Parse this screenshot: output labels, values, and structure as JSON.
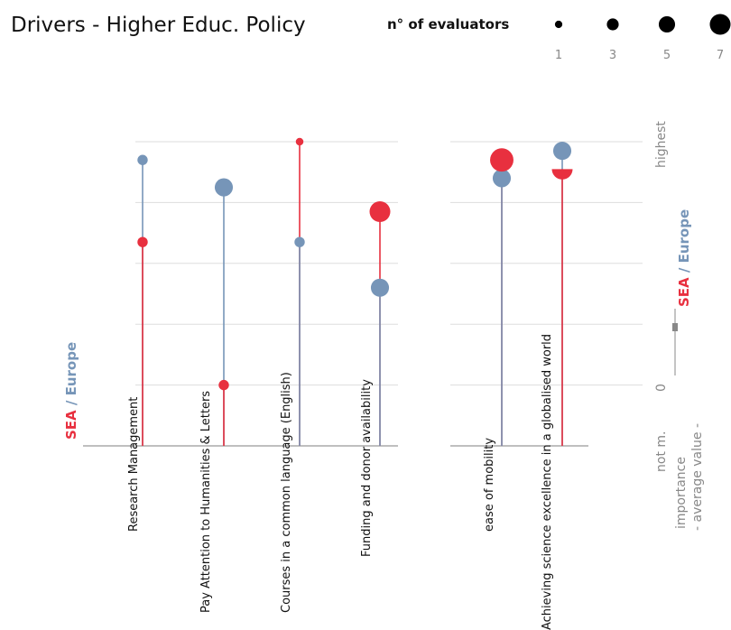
{
  "title": "Drivers - Higher Educ. Policy",
  "legend": {
    "title": "n° of evaluators",
    "sizes": [
      {
        "label": "1",
        "n": 1
      },
      {
        "label": "3",
        "n": 3
      },
      {
        "label": "5",
        "n": 5
      },
      {
        "label": "7",
        "n": 7
      }
    ]
  },
  "left_axis_label": {
    "sea": "SEA",
    "separator": " / ",
    "europe": "Europe"
  },
  "right_axis": {
    "top_tick": "highest",
    "zero_tick": "0",
    "bottom_tick": "not m.",
    "sea": "SEA",
    "separator": " / ",
    "europe": "Europe",
    "line1": "importance",
    "line2": "- average value -"
  },
  "colors": {
    "sea": "#e8303f",
    "europe": "#7695b8",
    "grid": "#dddddd",
    "baseline": "#999999"
  },
  "chart_data": {
    "type": "lollipop",
    "title": "Drivers - Higher Educ. Policy",
    "y_scale": {
      "bottom": "not m.",
      "zero": "0",
      "top": "highest",
      "levels": 5
    },
    "groups": [
      {
        "items": [
          {
            "label": "Research Management",
            "sea": {
              "value": 3.35,
              "n": 2
            },
            "europe": {
              "value": 4.7,
              "n": 2
            }
          },
          {
            "label": "Pay Attention to Humanities & Letters",
            "sea": {
              "value": 1.0,
              "n": 2
            },
            "europe": {
              "value": 4.25,
              "n": 5
            }
          },
          {
            "label": "Courses in a common language (English)",
            "sea": {
              "value": 5.0,
              "n": 1
            },
            "europe": {
              "value": 3.35,
              "n": 2
            }
          },
          {
            "label": "Funding and donor availability",
            "sea": {
              "value": 3.85,
              "n": 6
            },
            "europe": {
              "value": 2.6,
              "n": 5
            }
          }
        ]
      },
      {
        "items": [
          {
            "label": "ease of mobility",
            "sea": {
              "value": 4.7,
              "n": 7
            },
            "europe": {
              "value": 4.4,
              "n": 5
            },
            "europe_under": true
          },
          {
            "label": "Achieving science excellence in a globalised world",
            "sea": {
              "value": 4.55,
              "n": 6
            },
            "europe": {
              "value": 4.85,
              "n": 5
            },
            "sea_half": true
          }
        ]
      }
    ]
  }
}
